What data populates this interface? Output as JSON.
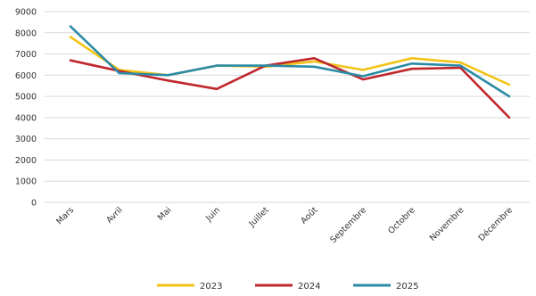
{
  "chart_data": {
    "type": "line",
    "title": "",
    "xlabel": "",
    "ylabel": "",
    "categories": [
      "Mars",
      "Avril",
      "Mai",
      "Juin",
      "Juillet",
      "Août",
      "Septembre",
      "Octobre",
      "Novembre",
      "Décembre"
    ],
    "ylim": [
      0,
      9000
    ],
    "yticks": [
      "0",
      "1000",
      "2000",
      "3000",
      "4000",
      "5000",
      "6000",
      "7000",
      "8000",
      "9000"
    ],
    "grid": true,
    "legend_position": "bottom",
    "series": [
      {
        "name": "2023",
        "color": "#f2c316",
        "values": [
          7800,
          6250,
          6000,
          6450,
          6400,
          6650,
          6250,
          6800,
          6600,
          5550
        ]
      },
      {
        "name": "2024",
        "color": "#c0272d",
        "values": [
          6700,
          6200,
          5750,
          5350,
          6450,
          6800,
          5800,
          6300,
          6350,
          4000
        ]
      },
      {
        "name": "2025",
        "color": "#2b8ba6",
        "values": [
          8300,
          6100,
          6000,
          6450,
          6450,
          6400,
          5950,
          6550,
          6450,
          5000
        ]
      }
    ]
  }
}
